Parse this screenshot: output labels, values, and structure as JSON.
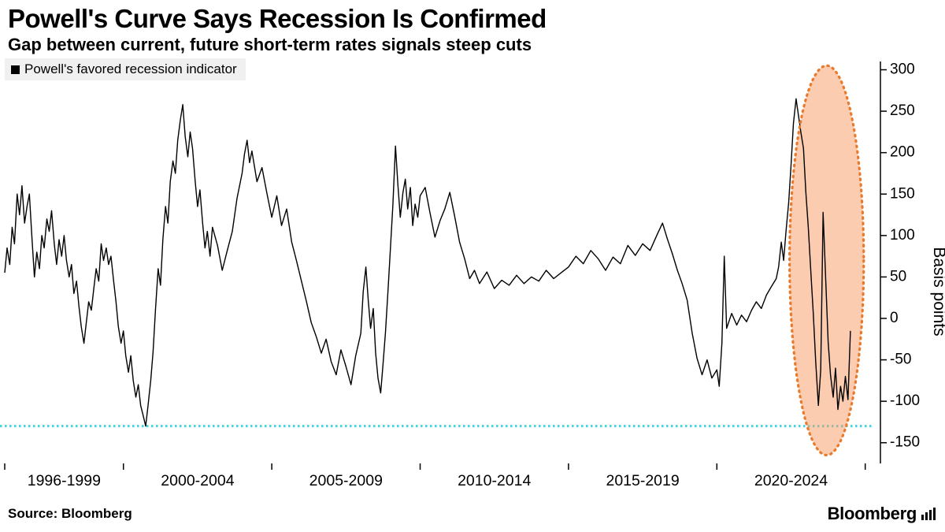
{
  "header": {
    "title": "Powell's Curve Says Recession Is Confirmed",
    "subtitle": "Gap between current, future short-term rates signals steep cuts"
  },
  "legend": {
    "label": "Powell's favored recession indicator",
    "marker_color": "#000000"
  },
  "footer": {
    "source": "Source: Bloomberg",
    "brand": "Bloomberg"
  },
  "chart_data": {
    "type": "line",
    "title": "Powell's Curve Says Recession Is Confirmed",
    "subtitle": "Gap between current, future short-term rates signals steep cuts",
    "ylabel": "Basis points",
    "ylim": [
      -175,
      310
    ],
    "yticks": [
      300,
      250,
      200,
      150,
      100,
      50,
      0,
      -50,
      -100,
      -150
    ],
    "xlim": [
      1996,
      2025.3
    ],
    "x_tick_labels": [
      "1996-1999",
      "2000-2004",
      "2005-2009",
      "2010-2014",
      "2015-2019",
      "2020-2024"
    ],
    "x_tick_centers": [
      1998,
      2002.5,
      2007.5,
      2012.5,
      2017.5,
      2022.5
    ],
    "x_boundaries": [
      1996,
      2000,
      2005,
      2010,
      2015,
      2020,
      2025
    ],
    "grid": false,
    "legend_position": "top-left",
    "threshold_line": {
      "value": -130,
      "color": "#3fd5de",
      "style": "dotted"
    },
    "highlight_ellipse": {
      "center_x": 2023.7,
      "center_y": 70,
      "radius_x": 1.25,
      "radius_y": 235,
      "stroke": "#e87a2e",
      "fill": "#f79a5f",
      "fill_opacity": 0.5
    },
    "series": [
      {
        "name": "Powell's favored recession indicator",
        "color": "#000000",
        "points": [
          [
            1996.0,
            55
          ],
          [
            1996.08,
            85
          ],
          [
            1996.17,
            65
          ],
          [
            1996.25,
            110
          ],
          [
            1996.33,
            90
          ],
          [
            1996.42,
            150
          ],
          [
            1996.5,
            125
          ],
          [
            1996.58,
            160
          ],
          [
            1996.67,
            115
          ],
          [
            1996.75,
            135
          ],
          [
            1996.83,
            150
          ],
          [
            1996.92,
            95
          ],
          [
            1997.0,
            50
          ],
          [
            1997.08,
            80
          ],
          [
            1997.17,
            60
          ],
          [
            1997.25,
            100
          ],
          [
            1997.33,
            85
          ],
          [
            1997.42,
            120
          ],
          [
            1997.5,
            105
          ],
          [
            1997.58,
            130
          ],
          [
            1997.67,
            90
          ],
          [
            1997.75,
            65
          ],
          [
            1997.83,
            95
          ],
          [
            1997.92,
            75
          ],
          [
            1998.0,
            100
          ],
          [
            1998.08,
            70
          ],
          [
            1998.17,
            50
          ],
          [
            1998.25,
            65
          ],
          [
            1998.33,
            30
          ],
          [
            1998.42,
            45
          ],
          [
            1998.5,
            15
          ],
          [
            1998.58,
            -10
          ],
          [
            1998.67,
            -30
          ],
          [
            1998.75,
            -5
          ],
          [
            1998.83,
            20
          ],
          [
            1998.92,
            10
          ],
          [
            1999.0,
            35
          ],
          [
            1999.08,
            60
          ],
          [
            1999.17,
            45
          ],
          [
            1999.25,
            90
          ],
          [
            1999.33,
            70
          ],
          [
            1999.42,
            85
          ],
          [
            1999.5,
            65
          ],
          [
            1999.58,
            75
          ],
          [
            1999.67,
            45
          ],
          [
            1999.75,
            20
          ],
          [
            1999.83,
            -10
          ],
          [
            1999.92,
            -30
          ],
          [
            2000.0,
            -15
          ],
          [
            2000.08,
            -45
          ],
          [
            2000.17,
            -65
          ],
          [
            2000.25,
            -45
          ],
          [
            2000.33,
            -75
          ],
          [
            2000.42,
            -95
          ],
          [
            2000.5,
            -80
          ],
          [
            2000.58,
            -105
          ],
          [
            2000.67,
            -118
          ],
          [
            2000.75,
            -130
          ],
          [
            2000.83,
            -105
          ],
          [
            2000.92,
            -75
          ],
          [
            2001.0,
            -40
          ],
          [
            2001.08,
            10
          ],
          [
            2001.17,
            60
          ],
          [
            2001.25,
            40
          ],
          [
            2001.33,
            95
          ],
          [
            2001.42,
            135
          ],
          [
            2001.5,
            115
          ],
          [
            2001.58,
            165
          ],
          [
            2001.67,
            190
          ],
          [
            2001.75,
            175
          ],
          [
            2001.83,
            215
          ],
          [
            2001.92,
            240
          ],
          [
            2002.0,
            258
          ],
          [
            2002.08,
            220
          ],
          [
            2002.17,
            195
          ],
          [
            2002.25,
            225
          ],
          [
            2002.33,
            205
          ],
          [
            2002.42,
            165
          ],
          [
            2002.5,
            135
          ],
          [
            2002.58,
            155
          ],
          [
            2002.67,
            115
          ],
          [
            2002.75,
            85
          ],
          [
            2002.83,
            105
          ],
          [
            2002.92,
            75
          ],
          [
            2003.0,
            110
          ],
          [
            2003.17,
            88
          ],
          [
            2003.33,
            58
          ],
          [
            2003.5,
            82
          ],
          [
            2003.67,
            105
          ],
          [
            2003.83,
            145
          ],
          [
            2004.0,
            175
          ],
          [
            2004.08,
            198
          ],
          [
            2004.17,
            215
          ],
          [
            2004.25,
            188
          ],
          [
            2004.33,
            202
          ],
          [
            2004.5,
            165
          ],
          [
            2004.67,
            182
          ],
          [
            2004.83,
            152
          ],
          [
            2005.0,
            122
          ],
          [
            2005.17,
            148
          ],
          [
            2005.33,
            112
          ],
          [
            2005.5,
            132
          ],
          [
            2005.67,
            92
          ],
          [
            2005.83,
            70
          ],
          [
            2006.0,
            45
          ],
          [
            2006.17,
            20
          ],
          [
            2006.33,
            -5
          ],
          [
            2006.5,
            -22
          ],
          [
            2006.67,
            -42
          ],
          [
            2006.83,
            -25
          ],
          [
            2007.0,
            -52
          ],
          [
            2007.17,
            -68
          ],
          [
            2007.33,
            -38
          ],
          [
            2007.5,
            -58
          ],
          [
            2007.67,
            -80
          ],
          [
            2007.83,
            -45
          ],
          [
            2008.0,
            -18
          ],
          [
            2008.08,
            32
          ],
          [
            2008.17,
            62
          ],
          [
            2008.25,
            22
          ],
          [
            2008.33,
            -12
          ],
          [
            2008.42,
            12
          ],
          [
            2008.5,
            -42
          ],
          [
            2008.58,
            -72
          ],
          [
            2008.67,
            -90
          ],
          [
            2008.75,
            -55
          ],
          [
            2008.83,
            -18
          ],
          [
            2008.92,
            35
          ],
          [
            2009.0,
            85
          ],
          [
            2009.08,
            135
          ],
          [
            2009.17,
            208
          ],
          [
            2009.25,
            162
          ],
          [
            2009.33,
            122
          ],
          [
            2009.42,
            152
          ],
          [
            2009.5,
            168
          ],
          [
            2009.58,
            132
          ],
          [
            2009.67,
            158
          ],
          [
            2009.75,
            112
          ],
          [
            2009.83,
            138
          ],
          [
            2009.92,
            122
          ],
          [
            2010.0,
            148
          ],
          [
            2010.17,
            158
          ],
          [
            2010.33,
            128
          ],
          [
            2010.5,
            98
          ],
          [
            2010.67,
            118
          ],
          [
            2010.83,
            132
          ],
          [
            2011.0,
            152
          ],
          [
            2011.17,
            122
          ],
          [
            2011.33,
            92
          ],
          [
            2011.5,
            72
          ],
          [
            2011.67,
            48
          ],
          [
            2011.83,
            58
          ],
          [
            2012.0,
            42
          ],
          [
            2012.25,
            56
          ],
          [
            2012.5,
            36
          ],
          [
            2012.75,
            46
          ],
          [
            2013.0,
            40
          ],
          [
            2013.25,
            52
          ],
          [
            2013.5,
            42
          ],
          [
            2013.75,
            50
          ],
          [
            2014.0,
            45
          ],
          [
            2014.25,
            58
          ],
          [
            2014.5,
            48
          ],
          [
            2014.75,
            55
          ],
          [
            2015.0,
            62
          ],
          [
            2015.25,
            75
          ],
          [
            2015.5,
            66
          ],
          [
            2015.75,
            82
          ],
          [
            2016.0,
            72
          ],
          [
            2016.25,
            58
          ],
          [
            2016.5,
            74
          ],
          [
            2016.75,
            66
          ],
          [
            2017.0,
            88
          ],
          [
            2017.25,
            76
          ],
          [
            2017.5,
            90
          ],
          [
            2017.75,
            82
          ],
          [
            2018.0,
            102
          ],
          [
            2018.17,
            115
          ],
          [
            2018.33,
            96
          ],
          [
            2018.5,
            78
          ],
          [
            2018.67,
            58
          ],
          [
            2018.83,
            42
          ],
          [
            2019.0,
            22
          ],
          [
            2019.17,
            -18
          ],
          [
            2019.33,
            -48
          ],
          [
            2019.5,
            -68
          ],
          [
            2019.67,
            -50
          ],
          [
            2019.83,
            -72
          ],
          [
            2020.0,
            -62
          ],
          [
            2020.08,
            -82
          ],
          [
            2020.17,
            -30
          ],
          [
            2020.25,
            75
          ],
          [
            2020.33,
            -12
          ],
          [
            2020.5,
            6
          ],
          [
            2020.67,
            -8
          ],
          [
            2020.83,
            4
          ],
          [
            2021.0,
            -4
          ],
          [
            2021.17,
            10
          ],
          [
            2021.33,
            20
          ],
          [
            2021.5,
            12
          ],
          [
            2021.67,
            28
          ],
          [
            2021.83,
            38
          ],
          [
            2022.0,
            48
          ],
          [
            2022.08,
            62
          ],
          [
            2022.17,
            92
          ],
          [
            2022.25,
            70
          ],
          [
            2022.33,
            105
          ],
          [
            2022.42,
            140
          ],
          [
            2022.5,
            185
          ],
          [
            2022.58,
            235
          ],
          [
            2022.67,
            265
          ],
          [
            2022.75,
            245
          ],
          [
            2022.83,
            225
          ],
          [
            2022.92,
            205
          ],
          [
            2023.0,
            152
          ],
          [
            2023.08,
            110
          ],
          [
            2023.17,
            55
          ],
          [
            2023.25,
            5
          ],
          [
            2023.33,
            -52
          ],
          [
            2023.42,
            -105
          ],
          [
            2023.5,
            -62
          ],
          [
            2023.58,
            128
          ],
          [
            2023.67,
            45
          ],
          [
            2023.75,
            -28
          ],
          [
            2023.83,
            -68
          ],
          [
            2023.92,
            -95
          ],
          [
            2024.0,
            -60
          ],
          [
            2024.08,
            -110
          ],
          [
            2024.17,
            -82
          ],
          [
            2024.25,
            -100
          ],
          [
            2024.33,
            -70
          ],
          [
            2024.42,
            -98
          ],
          [
            2024.5,
            -15
          ]
        ]
      }
    ]
  }
}
